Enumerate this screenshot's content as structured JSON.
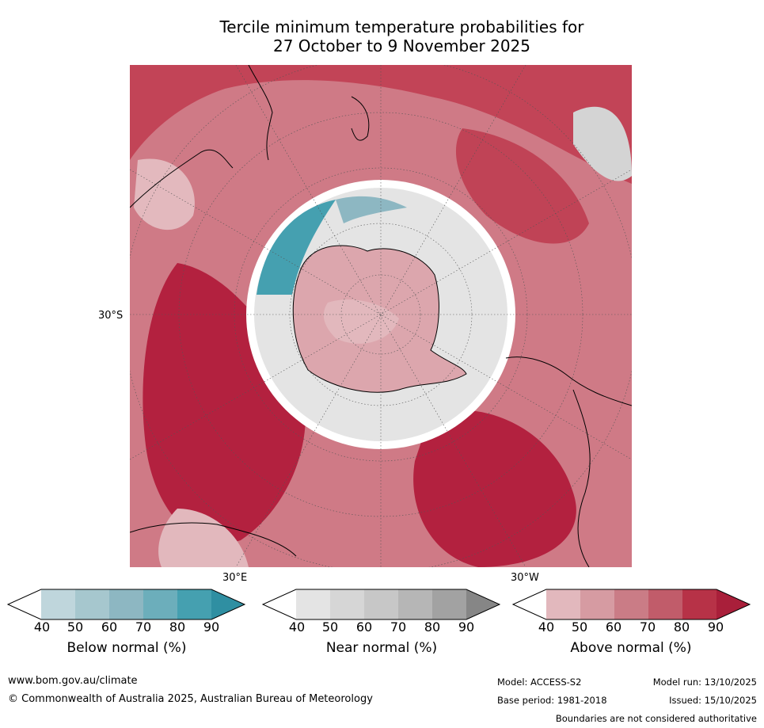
{
  "title": {
    "line1": "Tercile minimum temperature probabilities for",
    "line2": "27 October to 9 November 2025"
  },
  "map": {
    "lat_label": "30°S",
    "lon_label_east": "30°E",
    "lon_label_west": "30°W"
  },
  "legends": [
    {
      "title": "Below normal (%)",
      "ticks": [
        "40",
        "50",
        "60",
        "70",
        "80",
        "90"
      ],
      "colors": [
        "#ffffff",
        "#bfd6dc",
        "#a6c7ce",
        "#8db7c2",
        "#6caebb",
        "#45a0b0",
        "#2f8fa2"
      ]
    },
    {
      "title": "Near normal (%)",
      "ticks": [
        "40",
        "50",
        "60",
        "70",
        "80",
        "90"
      ],
      "colors": [
        "#ffffff",
        "#e4e4e4",
        "#d6d6d6",
        "#c7c7c7",
        "#b6b6b6",
        "#a2a2a2",
        "#868686"
      ]
    },
    {
      "title": "Above normal (%)",
      "ticks": [
        "40",
        "50",
        "60",
        "70",
        "80",
        "90"
      ],
      "colors": [
        "#ffffff",
        "#e2b8bd",
        "#d69ba2",
        "#ca7c86",
        "#c15c6a",
        "#b73247",
        "#a91f3a"
      ]
    }
  ],
  "footer": {
    "website": "www.bom.gov.au/climate",
    "copyright": "© Commonwealth of Australia 2025, Australian Bureau of Meteorology",
    "model": "Model: ACCESS-S2",
    "base_period": "Base period: 1981-2018",
    "model_run": "Model run: 13/10/2025",
    "issued": "Issued: 15/10/2025",
    "disclaimer": "Boundaries are not considered authoritative"
  }
}
